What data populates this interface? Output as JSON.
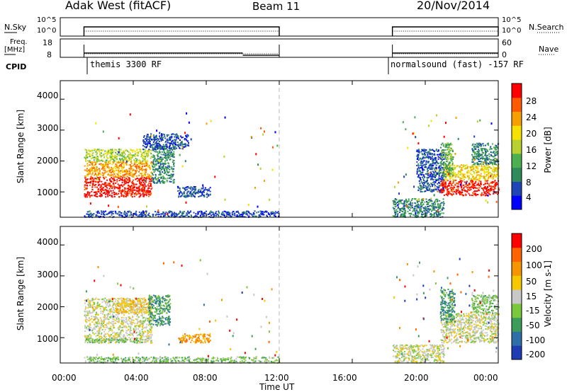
{
  "header": {
    "station": "Adak West (fitACF)",
    "beam": "Beam 11",
    "date": "20/Nov/2014"
  },
  "sky_panel": {
    "left_label": "N.Sky",
    "right_label": "N.Search",
    "left_ticks": [
      "10^5",
      "10^0"
    ],
    "right_ticks": [
      "10^5",
      "10^0"
    ]
  },
  "freq_panel": {
    "left_label_line1": "Freq.",
    "left_label_line2": "[MHz]",
    "right_label": "Nave",
    "left_ticks": [
      "18",
      "8"
    ],
    "right_ticks": [
      "60",
      "0"
    ]
  },
  "cpid_panel": {
    "label": "CPID",
    "program_1": "themis 3300 RF",
    "program_2": "normalsound (fast) -157 RF"
  },
  "x_axis": {
    "title": "Time UT",
    "ticks": [
      "00:00",
      "04:00",
      "08:00",
      "12:00",
      "16:00",
      "20:00",
      "00:00"
    ]
  },
  "power_panel": {
    "ylabel": "Slant Range [km]",
    "yticks": [
      "4000",
      "3000",
      "2000",
      "1000"
    ],
    "colorbar_label": "Power [dB]",
    "colorbar_ticks": [
      "28",
      "24",
      "20",
      "16",
      "12",
      "8",
      "4"
    ],
    "colors": [
      "#0000ff",
      "#1e46b4",
      "#2f8c5a",
      "#4caf50",
      "#b8d12e",
      "#f5e200",
      "#f5a000",
      "#ff5a00",
      "#ff0000"
    ]
  },
  "velocity_panel": {
    "ylabel": "Slant Range [km]",
    "yticks": [
      "4000",
      "3000",
      "2000",
      "1000"
    ],
    "colorbar_label": "Velocity [m s-1]",
    "colorbar_ticks": [
      "200",
      "100",
      "50",
      "15",
      "-15",
      "-50",
      "-100",
      "-200"
    ],
    "colors": [
      "#1e3cb4",
      "#2f6fa8",
      "#3c9c5a",
      "#7cc83c",
      "#c8c8c8",
      "#f5c800",
      "#f59600",
      "#ff6400",
      "#ff0000"
    ]
  },
  "chart_data": {
    "type": "heatmap",
    "x_range_hours": [
      0,
      24
    ],
    "y_range_km": [
      180,
      4600
    ],
    "observation_windows_hours": [
      [
        1.3,
        12.0
      ],
      [
        18.2,
        24.0
      ]
    ],
    "frequency_mhz": {
      "segments": [
        {
          "start_hour": 1.3,
          "end_hour": 10.0,
          "value": 11.5
        },
        {
          "start_hour": 10.0,
          "end_hour": 12.0,
          "value": 10.3
        },
        {
          "start_hour": 18.2,
          "end_hour": 24.0,
          "value": 11.5
        }
      ]
    },
    "power_regions": [
      {
        "t0": 1.3,
        "t1": 5.0,
        "r0": 850,
        "r1": 1500,
        "level": 8
      },
      {
        "t0": 1.3,
        "t1": 5.0,
        "r0": 1500,
        "r1": 2000,
        "level": 6
      },
      {
        "t0": 1.3,
        "t1": 5.0,
        "r0": 2000,
        "r1": 2400,
        "level": 4
      },
      {
        "t0": 5.0,
        "t1": 6.2,
        "r0": 1300,
        "r1": 2500,
        "level": 2
      },
      {
        "t0": 6.4,
        "t1": 8.2,
        "r0": 850,
        "r1": 1200,
        "level": 1
      },
      {
        "t0": 4.5,
        "t1": 7.0,
        "r0": 2400,
        "r1": 2900,
        "level": 1
      },
      {
        "t0": 1.3,
        "t1": 12.0,
        "r0": 200,
        "r1": 400,
        "level": 1
      },
      {
        "t0": 18.2,
        "t1": 21.0,
        "r0": 200,
        "r1": 800,
        "level": 2
      },
      {
        "t0": 19.5,
        "t1": 21.0,
        "r0": 1000,
        "r1": 2400,
        "level": 1
      },
      {
        "t0": 20.8,
        "t1": 24.0,
        "r0": 900,
        "r1": 1400,
        "level": 8
      },
      {
        "t0": 21.0,
        "t1": 24.0,
        "r0": 1400,
        "r1": 1900,
        "level": 5
      },
      {
        "t0": 20.8,
        "t1": 21.5,
        "r0": 1500,
        "r1": 2600,
        "level": 3
      },
      {
        "t0": 22.5,
        "t1": 24.0,
        "r0": 1900,
        "r1": 2600,
        "level": 2
      }
    ],
    "velocity_regions": [
      {
        "t0": 1.3,
        "t1": 5.0,
        "r0": 850,
        "r1": 2300,
        "level": 4
      },
      {
        "t0": 1.3,
        "t1": 4.5,
        "r0": 850,
        "r1": 1000,
        "level": 3
      },
      {
        "t0": 3.0,
        "t1": 5.0,
        "r0": 1800,
        "r1": 2300,
        "level": 5
      },
      {
        "t0": 4.8,
        "t1": 6.0,
        "r0": 1400,
        "r1": 2400,
        "level": 2
      },
      {
        "t0": 6.4,
        "t1": 8.2,
        "r0": 850,
        "r1": 1150,
        "level": 6
      },
      {
        "t0": 1.3,
        "t1": 12.0,
        "r0": 200,
        "r1": 400,
        "level": 3
      },
      {
        "t0": 18.2,
        "t1": 21.0,
        "r0": 200,
        "r1": 800,
        "level": 4
      },
      {
        "t0": 20.8,
        "t1": 24.0,
        "r0": 850,
        "r1": 1800,
        "level": 4
      },
      {
        "t0": 20.8,
        "t1": 21.6,
        "r0": 1500,
        "r1": 2600,
        "level": 2
      },
      {
        "t0": 22.5,
        "t1": 24.0,
        "r0": 1800,
        "r1": 2400,
        "level": 3
      }
    ]
  }
}
